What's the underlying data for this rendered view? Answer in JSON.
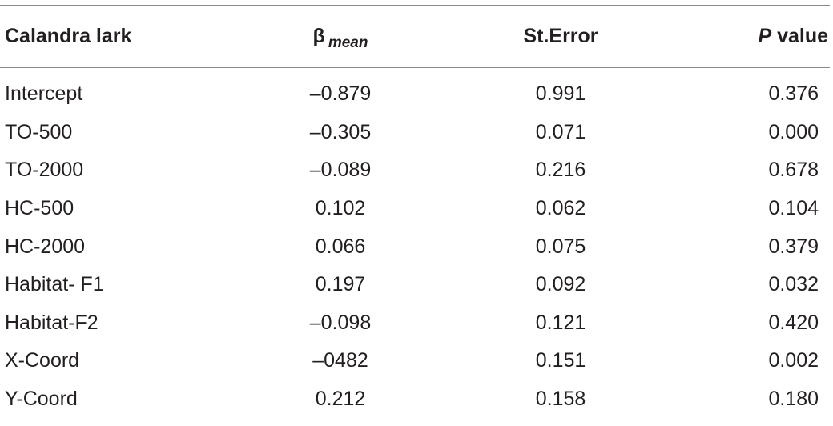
{
  "table": {
    "headers": {
      "species": "Calandra lark",
      "beta_symbol": "β",
      "beta_sub": "mean",
      "st_error": "St.Error",
      "p_italic": "P",
      "p_rest": " value"
    },
    "rows": [
      {
        "label": "Intercept",
        "beta": "–0.879",
        "se": "0.991",
        "p": "0.376"
      },
      {
        "label": "TO-500",
        "beta": "–0.305",
        "se": "0.071",
        "p": "0.000"
      },
      {
        "label": "TO-2000",
        "beta": "–0.089",
        "se": "0.216",
        "p": "0.678"
      },
      {
        "label": "HC-500",
        "beta": "0.102",
        "se": "0.062",
        "p": "0.104"
      },
      {
        "label": "HC-2000",
        "beta": "0.066",
        "se": "0.075",
        "p": "0.379"
      },
      {
        "label": "Habitat- F1",
        "beta": "0.197",
        "se": "0.092",
        "p": "0.032"
      },
      {
        "label": "Habitat-F2",
        "beta": "–0.098",
        "se": "0.121",
        "p": "0.420"
      },
      {
        "label": "X-Coord",
        "beta": "–0482",
        "se": "0.151",
        "p": "0.002"
      },
      {
        "label": "Y-Coord",
        "beta": "0.212",
        "se": "0.158",
        "p": "0.180"
      }
    ]
  }
}
